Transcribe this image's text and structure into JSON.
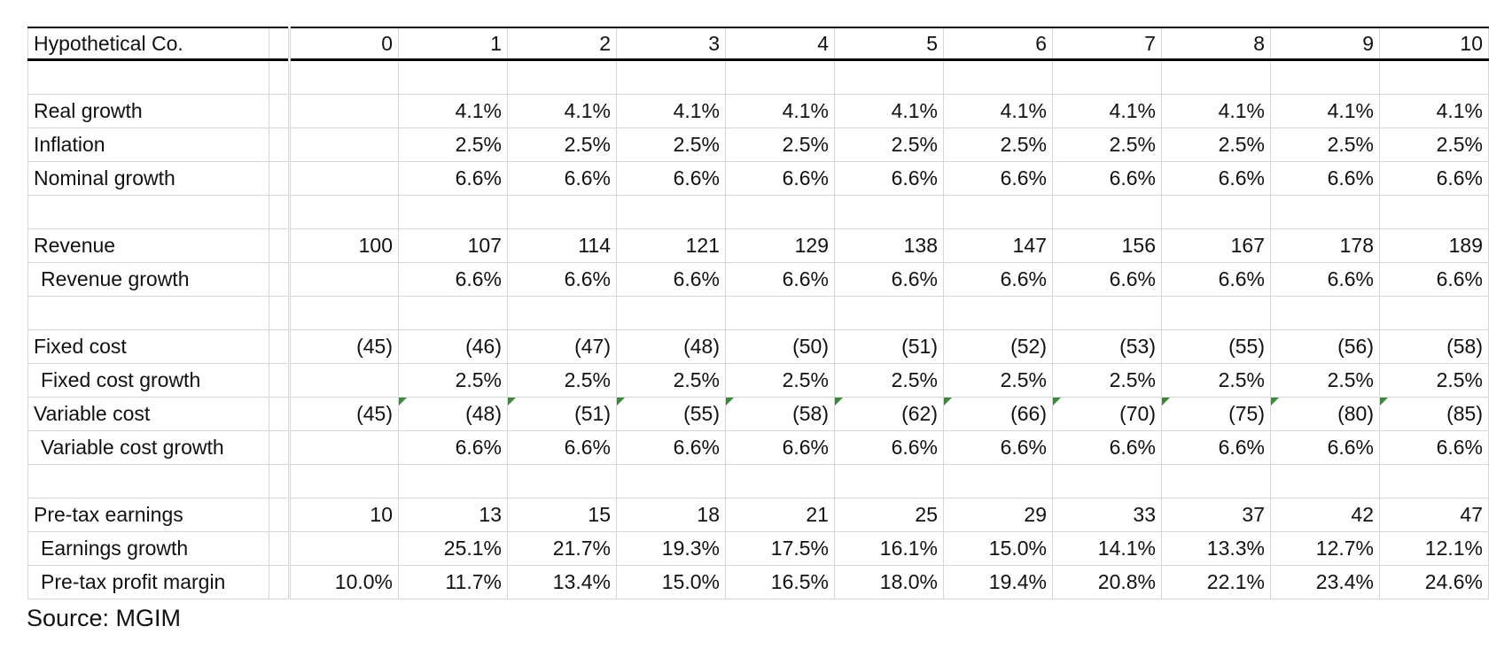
{
  "header": {
    "title": "Hypothetical Co.",
    "columns": [
      "0",
      "1",
      "2",
      "3",
      "4",
      "5",
      "6",
      "7",
      "8",
      "9",
      "10"
    ]
  },
  "sections": [
    [
      {
        "label": "Real growth",
        "cells": [
          null,
          "4.1%",
          "4.1%",
          "4.1%",
          "4.1%",
          "4.1%",
          "4.1%",
          "4.1%",
          "4.1%",
          "4.1%",
          "4.1%"
        ]
      },
      {
        "label": "Inflation",
        "cells": [
          null,
          "2.5%",
          "2.5%",
          "2.5%",
          "2.5%",
          "2.5%",
          "2.5%",
          "2.5%",
          "2.5%",
          "2.5%",
          "2.5%"
        ]
      },
      {
        "label": "Nominal growth",
        "cells": [
          null,
          "6.6%",
          "6.6%",
          "6.6%",
          "6.6%",
          "6.6%",
          "6.6%",
          "6.6%",
          "6.6%",
          "6.6%",
          "6.6%"
        ]
      }
    ],
    [
      {
        "label": "Revenue",
        "cells": [
          "100",
          "107",
          "114",
          "121",
          "129",
          "138",
          "147",
          "156",
          "167",
          "178",
          "189"
        ]
      },
      {
        "label": "Revenue growth",
        "indent": true,
        "cells": [
          null,
          "6.6%",
          "6.6%",
          "6.6%",
          "6.6%",
          "6.6%",
          "6.6%",
          "6.6%",
          "6.6%",
          "6.6%",
          "6.6%"
        ]
      }
    ],
    [
      {
        "label": "Fixed cost",
        "cells": [
          "(45)",
          "(46)",
          "(47)",
          "(48)",
          "(50)",
          "(51)",
          "(52)",
          "(53)",
          "(55)",
          "(56)",
          "(58)"
        ]
      },
      {
        "label": "Fixed cost growth",
        "indent": true,
        "cells": [
          null,
          "2.5%",
          "2.5%",
          "2.5%",
          "2.5%",
          "2.5%",
          "2.5%",
          "2.5%",
          "2.5%",
          "2.5%",
          "2.5%"
        ]
      },
      {
        "label": "Variable cost",
        "flagged": true,
        "cells": [
          "(45)",
          "(48)",
          "(51)",
          "(55)",
          "(58)",
          "(62)",
          "(66)",
          "(70)",
          "(75)",
          "(80)",
          "(85)"
        ]
      },
      {
        "label": "Variable cost growth",
        "indent": true,
        "cells": [
          null,
          "6.6%",
          "6.6%",
          "6.6%",
          "6.6%",
          "6.6%",
          "6.6%",
          "6.6%",
          "6.6%",
          "6.6%",
          "6.6%"
        ]
      }
    ],
    [
      {
        "label": "Pre-tax earnings",
        "cells": [
          "10",
          "13",
          "15",
          "18",
          "21",
          "25",
          "29",
          "33",
          "37",
          "42",
          "47"
        ]
      },
      {
        "label": "Earnings growth",
        "indent": true,
        "cells": [
          null,
          "25.1%",
          "21.7%",
          "19.3%",
          "17.5%",
          "16.1%",
          "15.0%",
          "14.1%",
          "13.3%",
          "12.7%",
          "12.1%"
        ]
      },
      {
        "label": "Pre-tax profit margin",
        "indent": true,
        "cells": [
          "10.0%",
          "11.7%",
          "13.4%",
          "15.0%",
          "16.5%",
          "18.0%",
          "19.4%",
          "20.8%",
          "22.1%",
          "23.4%",
          "24.6%"
        ]
      }
    ]
  ],
  "source": "Source: MGIM"
}
